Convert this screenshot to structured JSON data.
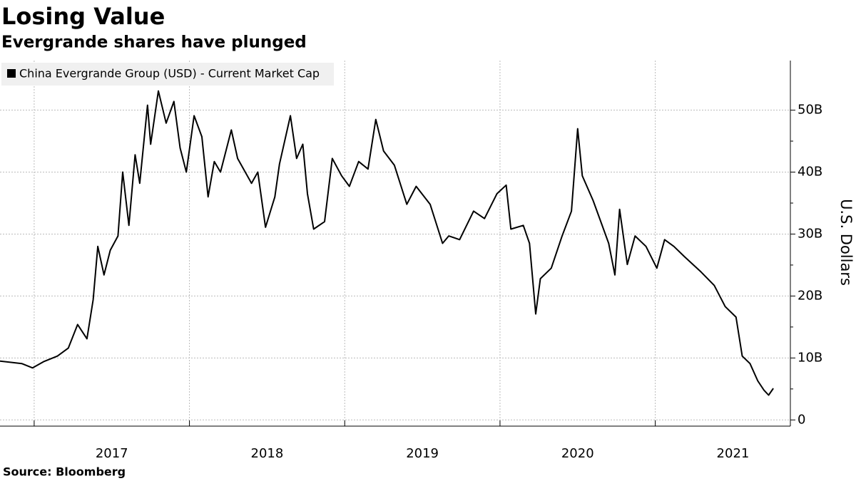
{
  "chart_data": {
    "type": "line",
    "title": "Losing Value",
    "subtitle": "Evergrande shares have plunged",
    "source": "Source: Bloomberg",
    "y_axis_label": "U.S. Dollars",
    "legend_position": "upper left",
    "grid": true,
    "x": [
      2016.78,
      2016.92,
      2016.99,
      2017.06,
      2017.15,
      2017.22,
      2017.28,
      2017.34,
      2017.38,
      2017.41,
      2017.45,
      2017.49,
      2017.54,
      2017.57,
      2017.61,
      2017.65,
      2017.68,
      2017.73,
      2017.75,
      2017.8,
      2017.85,
      2017.9,
      2017.94,
      2017.98,
      2018.03,
      2018.08,
      2018.12,
      2018.16,
      2018.2,
      2018.27,
      2018.31,
      2018.4,
      2018.44,
      2018.49,
      2018.55,
      2018.58,
      2018.65,
      2018.69,
      2018.73,
      2018.76,
      2018.8,
      2018.87,
      2018.92,
      2018.98,
      2019.03,
      2019.09,
      2019.15,
      2019.2,
      2019.25,
      2019.32,
      2019.4,
      2019.46,
      2019.55,
      2019.63,
      2019.67,
      2019.74,
      2019.83,
      2019.9,
      2019.98,
      2020.04,
      2020.07,
      2020.15,
      2020.19,
      2020.23,
      2020.26,
      2020.33,
      2020.4,
      2020.46,
      2020.5,
      2020.53,
      2020.6,
      2020.7,
      2020.74,
      2020.77,
      2020.82,
      2020.87,
      2020.94,
      2021.01,
      2021.06,
      2021.12,
      2021.19,
      2021.29,
      2021.38,
      2021.45,
      2021.52,
      2021.56,
      2021.61,
      2021.66,
      2021.7,
      2021.73,
      2021.76
    ],
    "series": [
      {
        "name": "China Evergrande Group (USD) - Current Market Cap",
        "color": "#000000",
        "values": [
          9.5,
          9.1,
          8.4,
          9.4,
          10.3,
          11.6,
          15.4,
          13.1,
          19.4,
          28.0,
          23.4,
          27.4,
          29.7,
          40.0,
          31.4,
          42.8,
          38.2,
          50.8,
          44.5,
          53.1,
          47.9,
          51.4,
          43.9,
          40.0,
          49.1,
          45.7,
          36.0,
          41.7,
          40.0,
          46.8,
          42.2,
          38.2,
          40.0,
          31.1,
          36.0,
          41.3,
          49.1,
          42.2,
          44.5,
          36.5,
          30.8,
          32.0,
          42.2,
          39.4,
          37.7,
          41.7,
          40.5,
          48.5,
          43.4,
          41.1,
          34.8,
          37.7,
          34.8,
          28.5,
          29.7,
          29.1,
          33.7,
          32.5,
          36.5,
          37.9,
          30.8,
          31.4,
          28.5,
          17.1,
          22.8,
          24.5,
          29.7,
          33.7,
          47.0,
          39.4,
          35.4,
          28.5,
          23.4,
          34.0,
          25.1,
          29.7,
          28.0,
          24.5,
          29.1,
          28.0,
          26.3,
          24.0,
          21.7,
          18.3,
          16.6,
          10.3,
          9.1,
          6.3,
          4.8,
          4.0,
          5.1
        ]
      }
    ],
    "xlim": [
      2016.78,
      2021.87
    ],
    "xticks": [
      2017,
      2018,
      2019,
      2020,
      2021
    ],
    "ylim": [
      -1,
      58
    ],
    "yticks": [
      0,
      {
        "value": 10,
        "label": "10B"
      },
      {
        "value": 20,
        "label": "20B"
      },
      {
        "value": 30,
        "label": "30B"
      },
      {
        "value": 40,
        "label": "40B"
      },
      {
        "value": 50,
        "label": "50B"
      }
    ]
  }
}
